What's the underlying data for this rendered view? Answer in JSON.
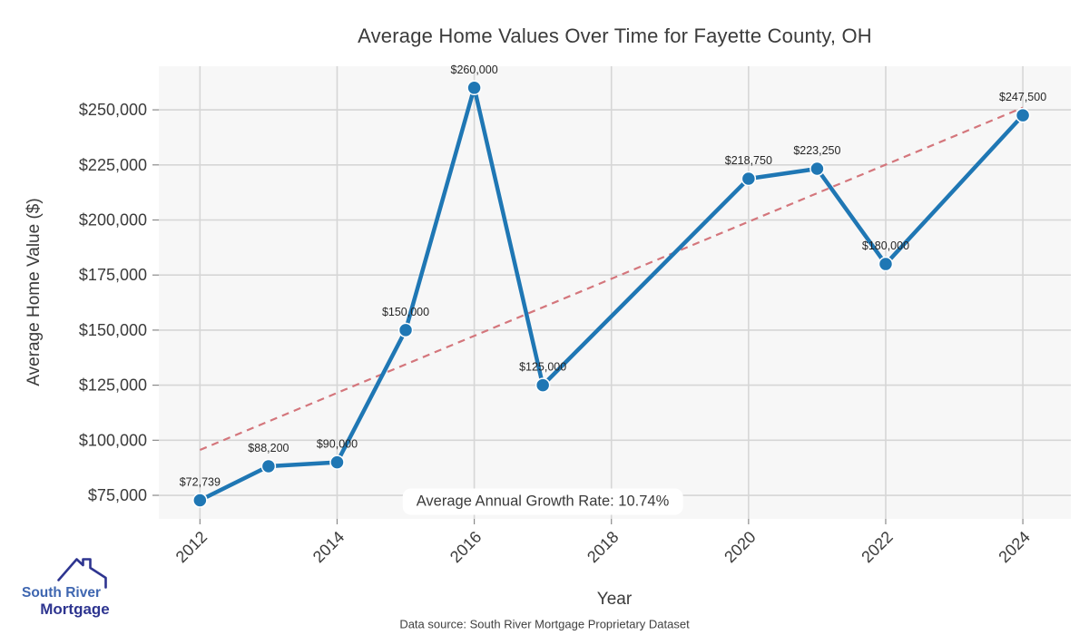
{
  "page": {
    "footer": "Data source: South River Mortgage Proprietary Dataset",
    "logo": {
      "line1": "South River",
      "line2": "Mortgage",
      "brand_blue": "#3e66b0",
      "brand_navy": "#2e3590"
    }
  },
  "chart_data": {
    "type": "line",
    "title": "Average Home Values Over Time for Fayette County, OH",
    "xlabel": "Year",
    "ylabel": "Average Home Value ($)",
    "x": [
      2012,
      2013,
      2014,
      2015,
      2016,
      2017,
      2020,
      2021,
      2022,
      2024
    ],
    "values": [
      72739,
      88200,
      90000,
      150000,
      260000,
      125000,
      218750,
      223250,
      180000,
      247500
    ],
    "point_labels": [
      "$72,739",
      "$88,200",
      "$90,000",
      "$150,000",
      "$260,000",
      "$125,000",
      "$218,750",
      "$223,250",
      "$180,000",
      "$247,500"
    ],
    "x_ticks": [
      2012,
      2014,
      2016,
      2018,
      2020,
      2022,
      2024
    ],
    "x_tick_labels": [
      "2012",
      "2014",
      "2016",
      "2018",
      "2020",
      "2022",
      "2024"
    ],
    "y_ticks": [
      75000,
      100000,
      125000,
      150000,
      175000,
      200000,
      225000,
      250000
    ],
    "y_tick_labels": [
      "$75,000",
      "$100,000",
      "$125,000",
      "$150,000",
      "$175,000",
      "$200,000",
      "$225,000",
      "$250,000"
    ],
    "xlim": [
      2011.4,
      2024.7
    ],
    "ylim": [
      64300,
      269800
    ],
    "grid": true,
    "legend": false,
    "annotation": "Average Annual Growth Rate: 10.74%",
    "growth_rate": "10.74%",
    "trend": {
      "style": "dashed",
      "x": [
        2012,
        2024
      ],
      "values": [
        95600,
        251000
      ]
    },
    "colors": {
      "line": "#1f77b4",
      "marker": "#1f77b4",
      "marker_edge": "#ffffff",
      "trend": "#d4767c",
      "plot_bg": "#f7f7f7",
      "grid": "#d6d6d6",
      "tick": "#8a8a8a",
      "text": "#3b3b3b",
      "point_label": "#262626"
    }
  }
}
